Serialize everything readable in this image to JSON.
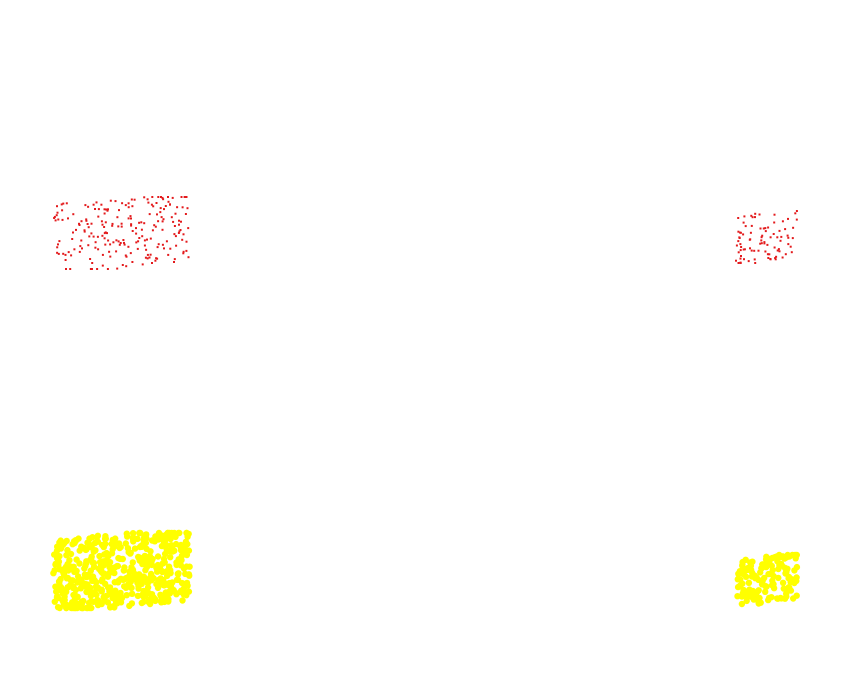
{
  "chart_data": {
    "type": "scatter",
    "title": "",
    "xlabel": "",
    "ylabel": "",
    "axes_visible": false,
    "grid": false,
    "legend": "none",
    "description_note_hidden": false,
    "colors": {
      "top_series": "#e31a1c",
      "bottom_series": "#ffff00",
      "background": "#ffffff"
    },
    "xlim": [
      0,
      850
    ],
    "ylim": [
      0,
      680
    ],
    "series": [
      {
        "name": "",
        "color_key": "top_series",
        "marker": "small-dot",
        "clusters": [
          {
            "x_range": [
              53,
              188
            ],
            "y_range": [
              196,
              268
            ],
            "count": 220,
            "seed": 11
          },
          {
            "x_range": [
              735,
              796
            ],
            "y_range": [
              210,
              262
            ],
            "count": 90,
            "seed": 23
          }
        ]
      },
      {
        "name": "",
        "color_key": "bottom_series",
        "marker": "large-dot",
        "clusters": [
          {
            "x_range": [
              53,
              190
            ],
            "y_range": [
              533,
              608
            ],
            "count": 520,
            "seed": 37
          },
          {
            "x_range": [
              737,
              797
            ],
            "y_range": [
              555,
              604
            ],
            "count": 140,
            "seed": 53
          }
        ]
      }
    ]
  }
}
